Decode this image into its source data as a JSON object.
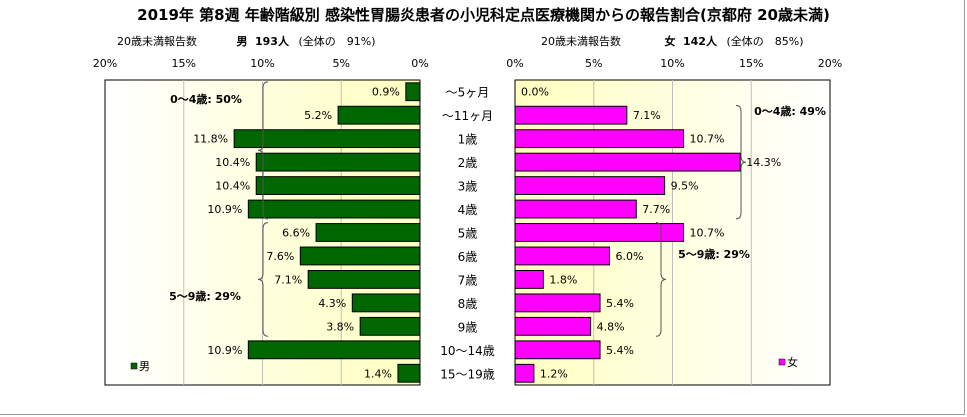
{
  "title": "2019年 第8週 年齢階級別 感染性胃腸炎患者の小児科定点医療機関からの報告割合(京都府 20歳未満)",
  "male_header": {
    "label": "20歳未満報告数",
    "sex": "男",
    "count": "193人",
    "share": "(全体の　91%)"
  },
  "female_header": {
    "label": "20歳未満報告数",
    "sex": "女",
    "count": "142人",
    "share": "(全体の　85%)"
  },
  "colors": {
    "male": "#006600",
    "female": "#ff00ff",
    "plot_gradient_outer": "#ffffff",
    "plot_gradient_inner": "#ffffc0"
  },
  "chart_data": [
    {
      "type": "bar",
      "orientation": "horizontal",
      "direction": "right-to-left",
      "categories": [
        "～5ヶ月",
        "～11ヶ月",
        "1歳",
        "2歳",
        "3歳",
        "4歳",
        "5歳",
        "6歳",
        "7歳",
        "8歳",
        "9歳",
        "10～14歳",
        "15～19歳"
      ],
      "series": [
        {
          "name": "男",
          "values": [
            0.9,
            5.2,
            11.8,
            10.4,
            10.4,
            10.9,
            6.6,
            7.6,
            7.1,
            4.3,
            3.8,
            10.9,
            1.4
          ]
        }
      ],
      "data_labels": [
        "0.9%",
        "5.2%",
        "11.8%",
        "10.4%",
        "10.4%",
        "10.9%",
        "6.6%",
        "7.6%",
        "7.1%",
        "4.3%",
        "3.8%",
        "10.9%",
        "1.4%"
      ],
      "xlim": [
        0,
        20
      ],
      "xticks": [
        "20%",
        "15%",
        "10%",
        "5%",
        "0%"
      ],
      "legend": "bottom-left",
      "annotations": [
        "0～4歳: 50%",
        "5～9歳: 29%"
      ]
    },
    {
      "type": "bar",
      "orientation": "horizontal",
      "direction": "left-to-right",
      "categories": [
        "～5ヶ月",
        "～11ヶ月",
        "1歳",
        "2歳",
        "3歳",
        "4歳",
        "5歳",
        "6歳",
        "7歳",
        "8歳",
        "9歳",
        "10～14歳",
        "15～19歳"
      ],
      "series": [
        {
          "name": "女",
          "values": [
            0.0,
            7.1,
            10.7,
            14.3,
            9.5,
            7.7,
            10.7,
            6.0,
            1.8,
            5.4,
            4.8,
            5.4,
            1.2
          ]
        }
      ],
      "data_labels": [
        "0.0%",
        "7.1%",
        "10.7%",
        "14.3%",
        "9.5%",
        "7.7%",
        "10.7%",
        "6.0%",
        "1.8%",
        "5.4%",
        "4.8%",
        "5.4%",
        "1.2%"
      ],
      "xlim": [
        0,
        20
      ],
      "xticks": [
        "0%",
        "5%",
        "10%",
        "15%",
        "20%"
      ],
      "legend": "bottom-right",
      "annotations": [
        "0～4歳: 49%",
        "5～9歳: 29%"
      ]
    }
  ]
}
